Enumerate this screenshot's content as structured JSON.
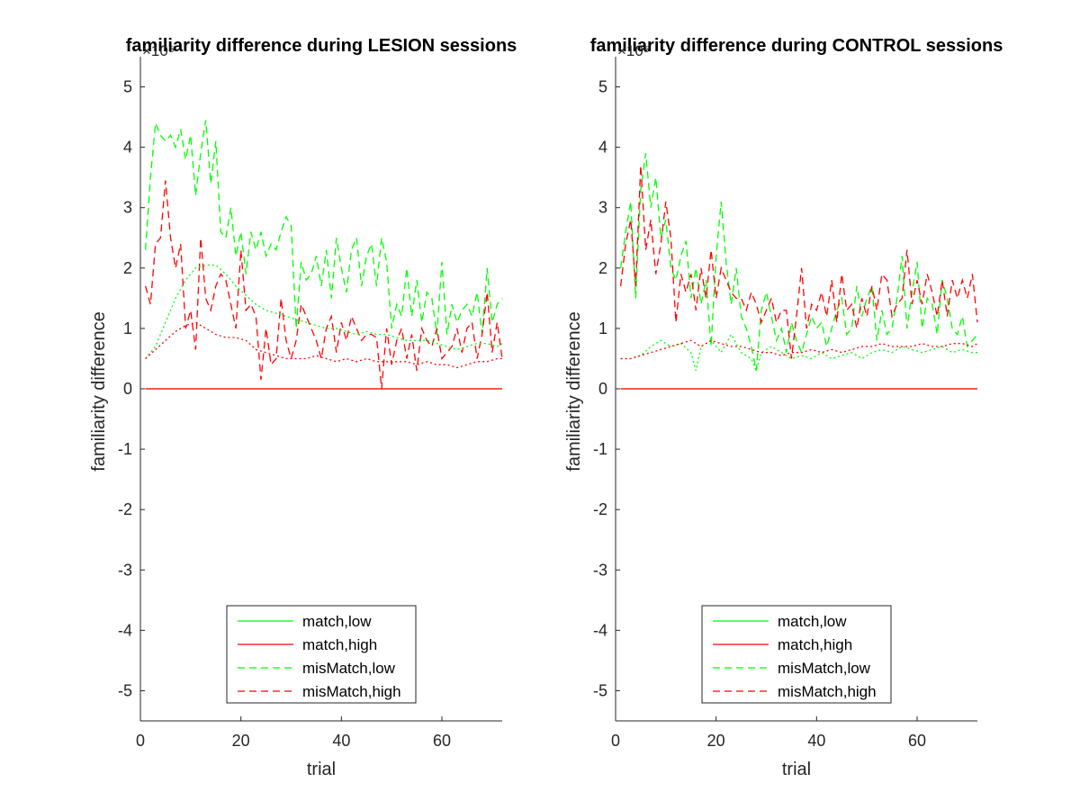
{
  "chart_data": [
    {
      "type": "line",
      "title": "familiarity difference during LESION sessions",
      "xlabel": "trial",
      "ylabel": "familiarity difference",
      "y_exponent": "×10⁵",
      "xlim": [
        0,
        72
      ],
      "ylim": [
        -5.5,
        5.5
      ],
      "xticks": [
        "0",
        "20",
        "40",
        "60"
      ],
      "yticks": [
        "-5",
        "-4",
        "-3",
        "-2",
        "-1",
        "0",
        "1",
        "2",
        "3",
        "4",
        "5"
      ],
      "legend_position": "bottom",
      "series": [
        {
          "name": "match,low",
          "color": "#00ff00",
          "style": "solid",
          "x": [
            1,
            72
          ],
          "values": [
            0,
            0
          ]
        },
        {
          "name": "match,high",
          "color": "#ff0000",
          "style": "solid",
          "x": [
            1,
            72
          ],
          "values": [
            0,
            0
          ]
        },
        {
          "name": "misMatch,low",
          "color": "#00ff00",
          "style": "dashed",
          "x": [
            1,
            2,
            3,
            4,
            5,
            6,
            7,
            8,
            9,
            10,
            11,
            12,
            13,
            14,
            15,
            16,
            17,
            18,
            19,
            20,
            21,
            22,
            23,
            24,
            25,
            26,
            27,
            28,
            29,
            30,
            31,
            32,
            33,
            34,
            35,
            36,
            37,
            38,
            39,
            40,
            41,
            42,
            43,
            44,
            45,
            46,
            47,
            48,
            49,
            50,
            51,
            52,
            53,
            54,
            55,
            56,
            57,
            58,
            59,
            60,
            61,
            62,
            63,
            64,
            65,
            66,
            67,
            68,
            69,
            70,
            71,
            72
          ],
          "values": [
            2.3,
            3.5,
            4.4,
            4.2,
            4.1,
            4.2,
            4.0,
            4.3,
            3.8,
            4.2,
            3.2,
            3.9,
            4.45,
            3.4,
            4.1,
            2.6,
            2.5,
            3.0,
            2.2,
            2.6,
            1.9,
            2.6,
            2.3,
            2.6,
            2.2,
            2.4,
            2.3,
            2.6,
            2.85,
            2.7,
            1.0,
            2.1,
            1.8,
            1.9,
            2.2,
            1.7,
            2.3,
            1.5,
            2.5,
            2.0,
            1.6,
            2.3,
            2.5,
            1.7,
            2.2,
            2.4,
            1.7,
            2.5,
            2.1,
            1.0,
            1.4,
            1.2,
            2.0,
            1.2,
            1.8,
            1.1,
            1.6,
            1.5,
            0.9,
            2.1,
            0.9,
            1.4,
            1.1,
            1.3,
            1.4,
            1.2,
            1.6,
            0.9,
            2.0,
            1.1,
            1.4,
            1.5
          ]
        },
        {
          "name": "misMatch,high",
          "color": "#ff0000",
          "style": "dashed",
          "x": [
            1,
            2,
            3,
            4,
            5,
            6,
            7,
            8,
            9,
            10,
            11,
            12,
            13,
            14,
            15,
            16,
            17,
            18,
            19,
            20,
            21,
            22,
            23,
            24,
            25,
            26,
            27,
            28,
            29,
            30,
            31,
            32,
            33,
            34,
            35,
            36,
            37,
            38,
            39,
            40,
            41,
            42,
            43,
            44,
            45,
            46,
            47,
            48,
            49,
            50,
            51,
            52,
            53,
            54,
            55,
            56,
            57,
            58,
            59,
            60,
            61,
            62,
            63,
            64,
            65,
            66,
            67,
            68,
            69,
            70,
            71,
            72
          ],
          "values": [
            1.7,
            1.4,
            2.4,
            2.5,
            3.45,
            2.5,
            2.0,
            2.4,
            1.0,
            1.3,
            0.65,
            2.5,
            1.5,
            1.3,
            1.7,
            1.9,
            1.8,
            1.4,
            1.0,
            2.3,
            1.3,
            1.4,
            1.2,
            0.15,
            1.0,
            0.4,
            0.5,
            1.5,
            0.8,
            0.5,
            0.8,
            1.4,
            1.2,
            1.0,
            0.8,
            0.5,
            1.0,
            1.2,
            0.6,
            1.1,
            0.8,
            1.2,
            1.0,
            0.8,
            0.9,
            0.9,
            0.85,
            0.0,
            1.0,
            0.4,
            0.8,
            1.0,
            0.5,
            0.9,
            0.3,
            1.0,
            0.8,
            0.7,
            1.0,
            0.5,
            0.6,
            0.7,
            1.0,
            0.6,
            1.0,
            1.1,
            0.5,
            0.9,
            1.6,
            0.6,
            1.1,
            0.5
          ]
        },
        {
          "name": "",
          "color": "#00ff00",
          "style": "dotted",
          "x": [
            1,
            3,
            5,
            7,
            9,
            11,
            13,
            15,
            17,
            19,
            21,
            23,
            25,
            27,
            29,
            31,
            33,
            35,
            37,
            39,
            41,
            43,
            45,
            47,
            49,
            51,
            53,
            55,
            57,
            59,
            61,
            63,
            65,
            67,
            69,
            71,
            72
          ],
          "values": [
            0.5,
            0.7,
            1.1,
            1.5,
            1.8,
            2.0,
            2.05,
            2.05,
            1.9,
            1.7,
            1.55,
            1.4,
            1.3,
            1.25,
            1.2,
            1.15,
            1.1,
            1.05,
            1.0,
            1.0,
            0.95,
            0.9,
            0.95,
            0.9,
            0.9,
            0.85,
            0.8,
            0.8,
            0.8,
            0.75,
            0.7,
            0.65,
            0.7,
            0.75,
            0.75,
            0.7,
            0.75
          ]
        },
        {
          "name": "",
          "color": "#ff0000",
          "style": "dotted",
          "x": [
            1,
            3,
            5,
            7,
            9,
            11,
            13,
            15,
            17,
            19,
            21,
            23,
            25,
            27,
            29,
            31,
            33,
            35,
            37,
            39,
            41,
            43,
            45,
            47,
            49,
            51,
            53,
            55,
            57,
            59,
            61,
            63,
            65,
            67,
            69,
            71,
            72
          ],
          "values": [
            0.5,
            0.65,
            0.8,
            0.95,
            1.05,
            1.1,
            1.0,
            0.9,
            0.85,
            0.85,
            0.8,
            0.65,
            0.6,
            0.55,
            0.5,
            0.5,
            0.5,
            0.55,
            0.5,
            0.45,
            0.5,
            0.45,
            0.5,
            0.45,
            0.45,
            0.45,
            0.45,
            0.4,
            0.45,
            0.4,
            0.4,
            0.35,
            0.4,
            0.45,
            0.45,
            0.5,
            0.5
          ]
        }
      ]
    },
    {
      "type": "line",
      "title": "familiarity difference during CONTROL sessions",
      "xlabel": "trial",
      "ylabel": "familiarity difference",
      "y_exponent": "×10⁵",
      "xlim": [
        0,
        72
      ],
      "ylim": [
        -5.5,
        5.5
      ],
      "xticks": [
        "0",
        "20",
        "40",
        "60"
      ],
      "yticks": [
        "-5",
        "-4",
        "-3",
        "-2",
        "-1",
        "0",
        "1",
        "2",
        "3",
        "4",
        "5"
      ],
      "legend_position": "bottom",
      "series": [
        {
          "name": "match,low",
          "color": "#00ff00",
          "style": "solid",
          "x": [
            1,
            72
          ],
          "values": [
            0,
            0
          ]
        },
        {
          "name": "match,high",
          "color": "#ff0000",
          "style": "solid",
          "x": [
            1,
            72
          ],
          "values": [
            0,
            0
          ]
        },
        {
          "name": "misMatch,low",
          "color": "#00ff00",
          "style": "dashed",
          "x": [
            1,
            2,
            3,
            4,
            5,
            6,
            7,
            8,
            9,
            10,
            11,
            12,
            13,
            14,
            15,
            16,
            17,
            18,
            19,
            20,
            21,
            22,
            23,
            24,
            25,
            26,
            27,
            28,
            29,
            30,
            31,
            32,
            33,
            34,
            35,
            36,
            37,
            38,
            39,
            40,
            41,
            42,
            43,
            44,
            45,
            46,
            47,
            48,
            49,
            50,
            51,
            52,
            53,
            54,
            55,
            56,
            57,
            58,
            59,
            60,
            61,
            62,
            63,
            64,
            65,
            66,
            67,
            68,
            69,
            70,
            71,
            72
          ],
          "values": [
            2.0,
            2.6,
            3.1,
            1.5,
            3.3,
            3.9,
            3.0,
            3.5,
            2.5,
            2.8,
            2.0,
            1.8,
            2.2,
            2.45,
            1.5,
            2.0,
            1.4,
            1.8,
            0.7,
            2.2,
            3.1,
            2.1,
            1.4,
            2.0,
            1.2,
            1.0,
            0.7,
            0.3,
            1.3,
            1.6,
            1.2,
            0.8,
            1.0,
            0.6,
            1.1,
            0.8,
            0.6,
            0.9,
            1.2,
            1.0,
            1.1,
            0.7,
            1.0,
            1.3,
            1.5,
            0.9,
            1.0,
            1.7,
            1.2,
            1.5,
            1.7,
            0.8,
            1.3,
            0.9,
            1.0,
            1.5,
            2.2,
            1.0,
            1.6,
            2.1,
            1.0,
            1.5,
            1.4,
            0.9,
            1.8,
            1.5,
            1.0,
            0.9,
            1.2,
            0.7,
            0.8,
            0.9
          ]
        },
        {
          "name": "misMatch,high",
          "color": "#ff0000",
          "style": "dashed",
          "x": [
            1,
            2,
            3,
            4,
            5,
            6,
            7,
            8,
            9,
            10,
            11,
            12,
            13,
            14,
            15,
            16,
            17,
            18,
            19,
            20,
            21,
            22,
            23,
            24,
            25,
            26,
            27,
            28,
            29,
            30,
            31,
            32,
            33,
            34,
            35,
            36,
            37,
            38,
            39,
            40,
            41,
            42,
            43,
            44,
            45,
            46,
            47,
            48,
            49,
            50,
            51,
            52,
            53,
            54,
            55,
            56,
            57,
            58,
            59,
            60,
            61,
            62,
            63,
            64,
            65,
            66,
            67,
            68,
            69,
            70,
            71,
            72
          ],
          "values": [
            1.7,
            2.4,
            2.8,
            1.7,
            3.7,
            2.3,
            2.8,
            1.9,
            2.4,
            3.1,
            2.5,
            1.1,
            1.9,
            1.6,
            1.9,
            1.3,
            2.0,
            1.5,
            2.3,
            1.5,
            2.0,
            1.8,
            1.6,
            1.5,
            1.5,
            1.3,
            1.6,
            1.4,
            1.1,
            1.3,
            1.5,
            1.1,
            1.3,
            1.3,
            0.5,
            1.2,
            2.0,
            1.0,
            1.4,
            1.3,
            1.6,
            1.2,
            1.8,
            1.1,
            1.9,
            1.3,
            1.4,
            1.0,
            1.5,
            1.2,
            1.7,
            1.3,
            1.9,
            1.8,
            1.2,
            1.4,
            1.5,
            2.3,
            1.4,
            1.8,
            1.4,
            1.9,
            1.6,
            1.2,
            1.8,
            1.2,
            1.8,
            1.5,
            1.8,
            1.5,
            1.9,
            1.1
          ]
        },
        {
          "name": "",
          "color": "#00ff00",
          "style": "dotted",
          "x": [
            1,
            3,
            5,
            7,
            9,
            11,
            13,
            15,
            16,
            17,
            19,
            21,
            23,
            25,
            27,
            28,
            29,
            31,
            33,
            35,
            37,
            39,
            41,
            43,
            45,
            47,
            49,
            51,
            53,
            55,
            57,
            59,
            61,
            63,
            65,
            67,
            69,
            71,
            72
          ],
          "values": [
            0.5,
            0.5,
            0.55,
            0.7,
            0.8,
            0.7,
            0.75,
            0.6,
            0.3,
            0.7,
            0.8,
            0.6,
            0.9,
            0.6,
            0.5,
            0.3,
            0.6,
            0.7,
            0.6,
            0.5,
            0.55,
            0.5,
            0.6,
            0.5,
            0.55,
            0.6,
            0.5,
            0.6,
            0.65,
            0.6,
            0.7,
            0.65,
            0.6,
            0.65,
            0.7,
            0.6,
            0.65,
            0.6,
            0.6
          ]
        },
        {
          "name": "",
          "color": "#ff0000",
          "style": "dotted",
          "x": [
            1,
            3,
            5,
            7,
            9,
            11,
            13,
            15,
            17,
            19,
            21,
            23,
            25,
            27,
            29,
            31,
            33,
            35,
            37,
            39,
            41,
            43,
            45,
            47,
            49,
            51,
            53,
            55,
            57,
            59,
            61,
            63,
            65,
            67,
            69,
            71,
            72
          ],
          "values": [
            0.5,
            0.5,
            0.55,
            0.6,
            0.65,
            0.7,
            0.75,
            0.8,
            0.7,
            0.8,
            0.75,
            0.7,
            0.7,
            0.65,
            0.6,
            0.6,
            0.55,
            0.6,
            0.6,
            0.65,
            0.6,
            0.65,
            0.6,
            0.65,
            0.7,
            0.7,
            0.75,
            0.7,
            0.7,
            0.7,
            0.75,
            0.7,
            0.7,
            0.75,
            0.75,
            0.7,
            0.75
          ]
        }
      ]
    }
  ]
}
